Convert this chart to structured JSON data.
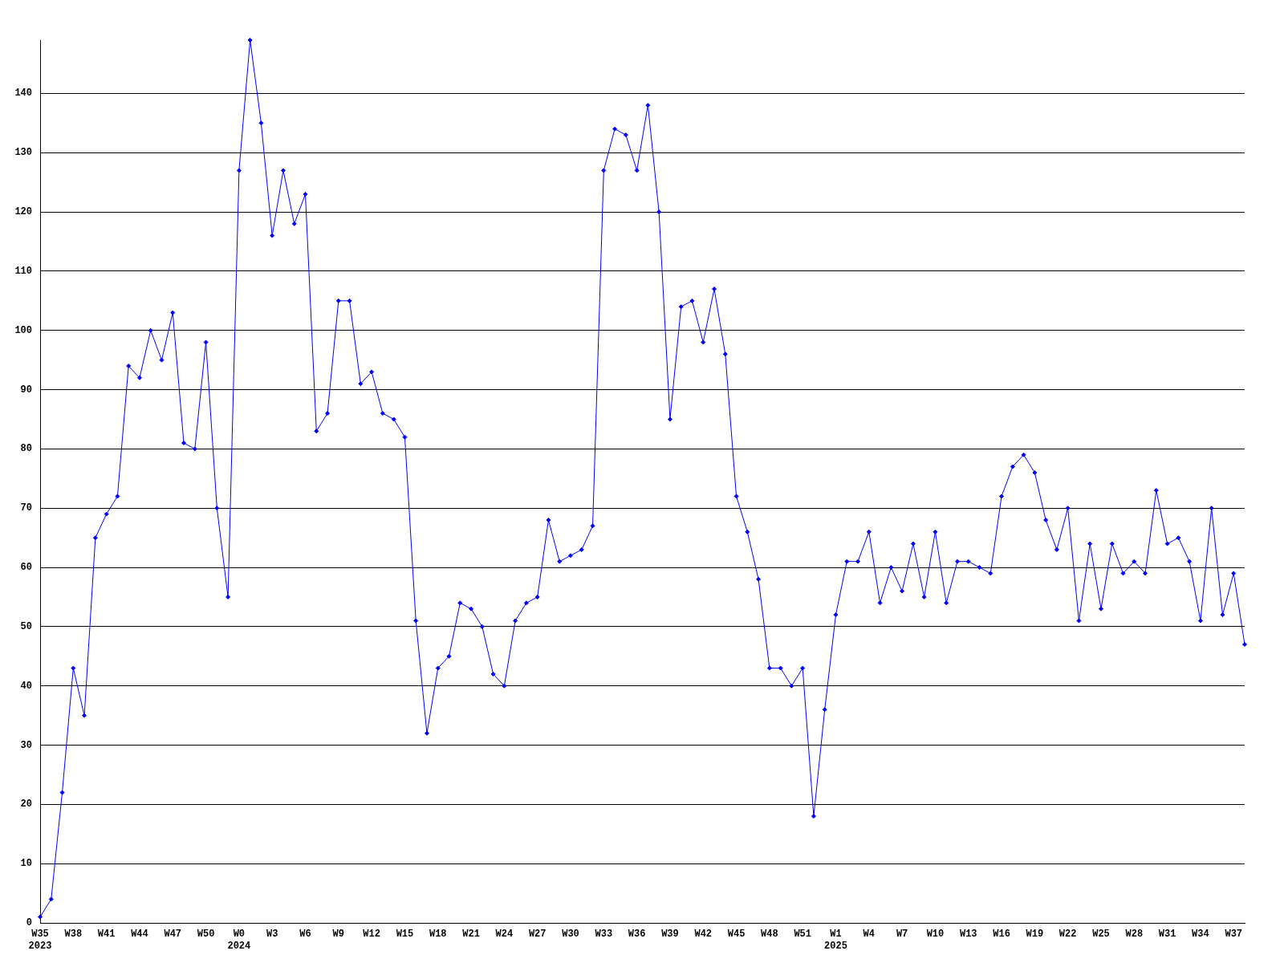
{
  "chart_data": {
    "type": "line",
    "categories": [
      "W35\n2023",
      null,
      null,
      "W38",
      null,
      null,
      "W41",
      null,
      null,
      "W44",
      null,
      null,
      "W47",
      null,
      null,
      "W50",
      null,
      null,
      "W0\n2024",
      null,
      null,
      "W3",
      null,
      null,
      "W6",
      null,
      null,
      "W9",
      null,
      null,
      "W12",
      null,
      null,
      "W15",
      null,
      null,
      "W18",
      null,
      null,
      "W21",
      null,
      null,
      "W24",
      null,
      null,
      "W27",
      null,
      null,
      "W30",
      null,
      null,
      "W33",
      null,
      null,
      "W36",
      null,
      null,
      "W39",
      null,
      null,
      "W42",
      null,
      null,
      "W45",
      null,
      null,
      "W48",
      null,
      null,
      "W51",
      null,
      null,
      "W1\n2025",
      null,
      null,
      "W4",
      null,
      null,
      "W7",
      null,
      null,
      "W10",
      null,
      null,
      "W13",
      null,
      null,
      "W16",
      null,
      null,
      "W19",
      null,
      null,
      "W22",
      null,
      null,
      "W25",
      null,
      null,
      "W28",
      null,
      null,
      "W31",
      null,
      null,
      "W34",
      null,
      null,
      "W37",
      null
    ],
    "series": [
      {
        "color": "#0000ff",
        "values": [
          1,
          4,
          22,
          43,
          35,
          65,
          69,
          72,
          94,
          92,
          100,
          95,
          103,
          81,
          80,
          98,
          70,
          55,
          127,
          149,
          135,
          116,
          127,
          118,
          123,
          83,
          86,
          105,
          105,
          91,
          93,
          86,
          85,
          82,
          51,
          32,
          43,
          45,
          54,
          53,
          50,
          42,
          40,
          51,
          54,
          55,
          68,
          61,
          62,
          63,
          67,
          127,
          134,
          133,
          127,
          138,
          120,
          85,
          104,
          105,
          98,
          107,
          96,
          72,
          66,
          58,
          43,
          43,
          40,
          43,
          18,
          36,
          52,
          61,
          61,
          66,
          54,
          60,
          56,
          64,
          55,
          66,
          54,
          61,
          61,
          60,
          59,
          72,
          77,
          79,
          76,
          68,
          63,
          70,
          51,
          64,
          53,
          64,
          59,
          61,
          59,
          73,
          64,
          65,
          61,
          51,
          70,
          52,
          59,
          47
        ]
      }
    ],
    "ylim": [
      0,
      149
    ],
    "yticks": [
      0,
      10,
      20,
      30,
      40,
      50,
      60,
      70,
      80,
      90,
      100,
      110,
      120,
      130,
      140
    ],
    "grid": "y",
    "marker": "diamond",
    "line_style": "solid"
  }
}
